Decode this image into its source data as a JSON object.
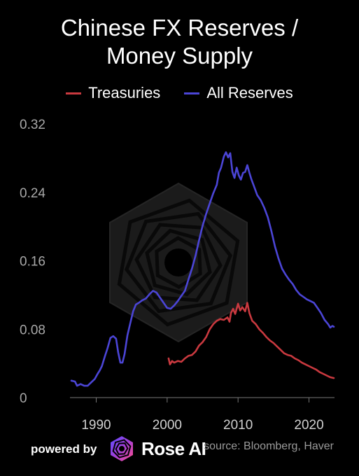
{
  "header": {
    "title_line1": "Chinese FX Reserves /",
    "title_line2": "Money Supply"
  },
  "footer": {
    "powered_label": "powered by",
    "brand": "Rose AI",
    "source": "source: Bloomberg, Haver"
  },
  "colors": {
    "treasuries": "#c9393f",
    "all_reserves": "#4b45d6",
    "background": "#000000",
    "axis_text": "#a8a8a8"
  },
  "chart_data": {
    "type": "line",
    "title": "Chinese FX Reserves / Money Supply",
    "xlabel": "",
    "ylabel": "",
    "xlim": [
      1986.3,
      2023.6
    ],
    "ylim": [
      0,
      0.32
    ],
    "x_ticks": [
      1990,
      2000,
      2010,
      2020
    ],
    "y_ticks": [
      0,
      0.08,
      0.16,
      0.24,
      0.32
    ],
    "y_tick_labels": [
      "0",
      "0.08",
      "0.16",
      "0.24",
      "0.32"
    ],
    "x_tick_labels": [
      "1990",
      "2000",
      "2010",
      "2020"
    ],
    "grid": false,
    "legend_position": "top-center",
    "series": [
      {
        "name": "Treasuries",
        "color": "#c9393f",
        "points": [
          [
            2000.2,
            0.045
          ],
          [
            2000.4,
            0.038
          ],
          [
            2000.7,
            0.042
          ],
          [
            2001.0,
            0.04
          ],
          [
            2001.5,
            0.042
          ],
          [
            2002.0,
            0.041
          ],
          [
            2002.5,
            0.045
          ],
          [
            2003.0,
            0.048
          ],
          [
            2003.5,
            0.049
          ],
          [
            2004.0,
            0.053
          ],
          [
            2004.5,
            0.06
          ],
          [
            2005.0,
            0.064
          ],
          [
            2005.5,
            0.07
          ],
          [
            2006.0,
            0.079
          ],
          [
            2006.5,
            0.085
          ],
          [
            2007.0,
            0.089
          ],
          [
            2007.5,
            0.091
          ],
          [
            2008.0,
            0.09
          ],
          [
            2008.5,
            0.093
          ],
          [
            2008.8,
            0.088
          ],
          [
            2009.0,
            0.098
          ],
          [
            2009.3,
            0.103
          ],
          [
            2009.6,
            0.097
          ],
          [
            2010.0,
            0.109
          ],
          [
            2010.3,
            0.101
          ],
          [
            2010.6,
            0.105
          ],
          [
            2011.0,
            0.1
          ],
          [
            2011.3,
            0.11
          ],
          [
            2011.6,
            0.098
          ],
          [
            2012.0,
            0.089
          ],
          [
            2012.5,
            0.085
          ],
          [
            2013.0,
            0.079
          ],
          [
            2013.5,
            0.075
          ],
          [
            2014.0,
            0.07
          ],
          [
            2014.5,
            0.066
          ],
          [
            2015.0,
            0.063
          ],
          [
            2015.5,
            0.059
          ],
          [
            2016.0,
            0.055
          ],
          [
            2016.5,
            0.051
          ],
          [
            2017.0,
            0.049
          ],
          [
            2017.5,
            0.048
          ],
          [
            2018.0,
            0.045
          ],
          [
            2018.5,
            0.043
          ],
          [
            2019.0,
            0.04
          ],
          [
            2019.5,
            0.038
          ],
          [
            2020.0,
            0.036
          ],
          [
            2020.5,
            0.034
          ],
          [
            2021.0,
            0.032
          ],
          [
            2021.5,
            0.029
          ],
          [
            2022.0,
            0.027
          ],
          [
            2022.5,
            0.025
          ],
          [
            2023.0,
            0.023
          ],
          [
            2023.5,
            0.022
          ]
        ]
      },
      {
        "name": "All Reserves",
        "color": "#4b45d6",
        "points": [
          [
            1986.5,
            0.019
          ],
          [
            1987.0,
            0.018
          ],
          [
            1987.3,
            0.013
          ],
          [
            1987.8,
            0.015
          ],
          [
            1988.3,
            0.013
          ],
          [
            1988.8,
            0.013
          ],
          [
            1989.3,
            0.017
          ],
          [
            1989.8,
            0.021
          ],
          [
            1990.2,
            0.027
          ],
          [
            1990.5,
            0.031
          ],
          [
            1990.8,
            0.036
          ],
          [
            1991.2,
            0.047
          ],
          [
            1991.6,
            0.057
          ],
          [
            1992.0,
            0.069
          ],
          [
            1992.4,
            0.071
          ],
          [
            1992.8,
            0.068
          ],
          [
            1993.1,
            0.052
          ],
          [
            1993.4,
            0.04
          ],
          [
            1993.7,
            0.04
          ],
          [
            1994.0,
            0.05
          ],
          [
            1994.4,
            0.072
          ],
          [
            1994.8,
            0.086
          ],
          [
            1995.2,
            0.1
          ],
          [
            1995.6,
            0.108
          ],
          [
            1996.0,
            0.11
          ],
          [
            1996.5,
            0.113
          ],
          [
            1997.0,
            0.115
          ],
          [
            1997.5,
            0.12
          ],
          [
            1998.0,
            0.124
          ],
          [
            1998.5,
            0.122
          ],
          [
            1999.0,
            0.116
          ],
          [
            1999.5,
            0.11
          ],
          [
            2000.0,
            0.104
          ],
          [
            2000.5,
            0.103
          ],
          [
            2001.0,
            0.107
          ],
          [
            2001.5,
            0.112
          ],
          [
            2002.0,
            0.118
          ],
          [
            2002.5,
            0.124
          ],
          [
            2003.0,
            0.137
          ],
          [
            2003.5,
            0.15
          ],
          [
            2004.0,
            0.165
          ],
          [
            2004.5,
            0.183
          ],
          [
            2005.0,
            0.2
          ],
          [
            2005.5,
            0.214
          ],
          [
            2006.0,
            0.226
          ],
          [
            2006.5,
            0.238
          ],
          [
            2007.0,
            0.248
          ],
          [
            2007.3,
            0.262
          ],
          [
            2007.6,
            0.268
          ],
          [
            2008.0,
            0.281
          ],
          [
            2008.3,
            0.286
          ],
          [
            2008.6,
            0.28
          ],
          [
            2008.9,
            0.285
          ],
          [
            2009.2,
            0.263
          ],
          [
            2009.5,
            0.256
          ],
          [
            2009.8,
            0.268
          ],
          [
            2010.1,
            0.259
          ],
          [
            2010.4,
            0.254
          ],
          [
            2010.7,
            0.262
          ],
          [
            2011.0,
            0.263
          ],
          [
            2011.3,
            0.271
          ],
          [
            2011.6,
            0.262
          ],
          [
            2011.9,
            0.254
          ],
          [
            2012.3,
            0.245
          ],
          [
            2012.7,
            0.236
          ],
          [
            2013.2,
            0.23
          ],
          [
            2013.7,
            0.221
          ],
          [
            2014.2,
            0.21
          ],
          [
            2014.7,
            0.194
          ],
          [
            2015.2,
            0.176
          ],
          [
            2015.7,
            0.162
          ],
          [
            2016.2,
            0.15
          ],
          [
            2016.7,
            0.143
          ],
          [
            2017.2,
            0.137
          ],
          [
            2017.7,
            0.132
          ],
          [
            2018.2,
            0.125
          ],
          [
            2018.7,
            0.12
          ],
          [
            2019.2,
            0.117
          ],
          [
            2019.7,
            0.114
          ],
          [
            2020.2,
            0.112
          ],
          [
            2020.7,
            0.11
          ],
          [
            2021.2,
            0.104
          ],
          [
            2021.7,
            0.098
          ],
          [
            2022.2,
            0.09
          ],
          [
            2022.7,
            0.085
          ],
          [
            2023.0,
            0.081
          ],
          [
            2023.3,
            0.083
          ],
          [
            2023.5,
            0.082
          ]
        ]
      }
    ]
  }
}
